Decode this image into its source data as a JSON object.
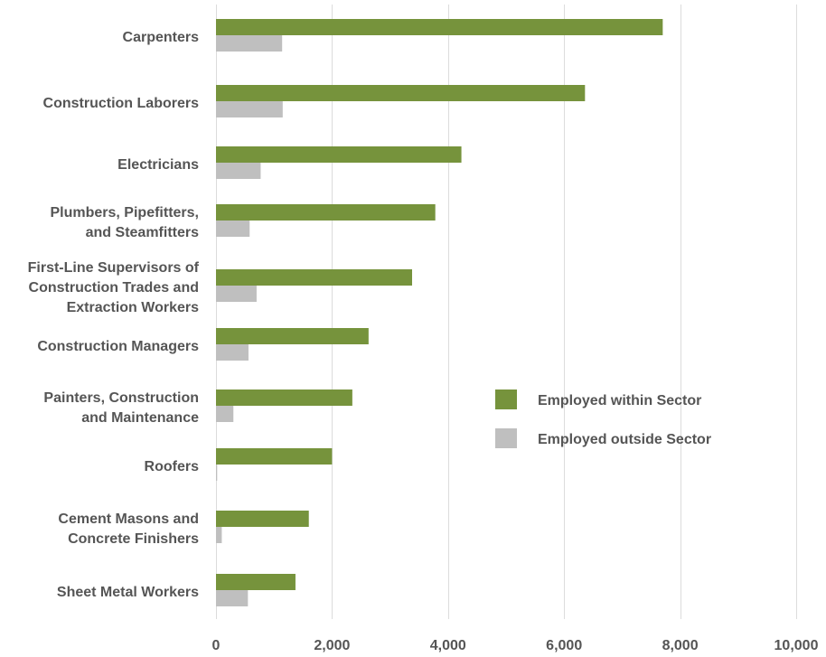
{
  "chart_data": {
    "type": "bar",
    "orientation": "horizontal",
    "categories": [
      [
        "Carpenters"
      ],
      [
        "Construction Laborers"
      ],
      [
        "Electricians"
      ],
      [
        "Plumbers, Pipefitters,",
        "and Steamfitters"
      ],
      [
        "First-Line Supervisors of",
        "Construction Trades and",
        "Extraction Workers"
      ],
      [
        "Construction Managers"
      ],
      [
        "Painters, Construction",
        "and Maintenance"
      ],
      [
        "Roofers"
      ],
      [
        "Cement Masons and",
        "Concrete Finishers"
      ],
      [
        "Sheet Metal Workers"
      ]
    ],
    "series": [
      {
        "name": "Employed within Sector",
        "color": "#76933c",
        "values": [
          7700,
          6360,
          4230,
          3780,
          3380,
          2630,
          2350,
          2000,
          1600,
          1370
        ]
      },
      {
        "name": "Employed outside Sector",
        "color": "#bfbfbf",
        "values": [
          1140,
          1150,
          770,
          580,
          700,
          560,
          300,
          20,
          100,
          550
        ]
      }
    ],
    "xlim": [
      0,
      10000
    ],
    "xticks": [
      "0",
      "2,000",
      "4,000",
      "6,000",
      "8,000",
      "10,000"
    ],
    "xtick_values": [
      0,
      2000,
      4000,
      6000,
      8000,
      10000
    ],
    "grid": "vertical",
    "legend_position": "right-center"
  }
}
